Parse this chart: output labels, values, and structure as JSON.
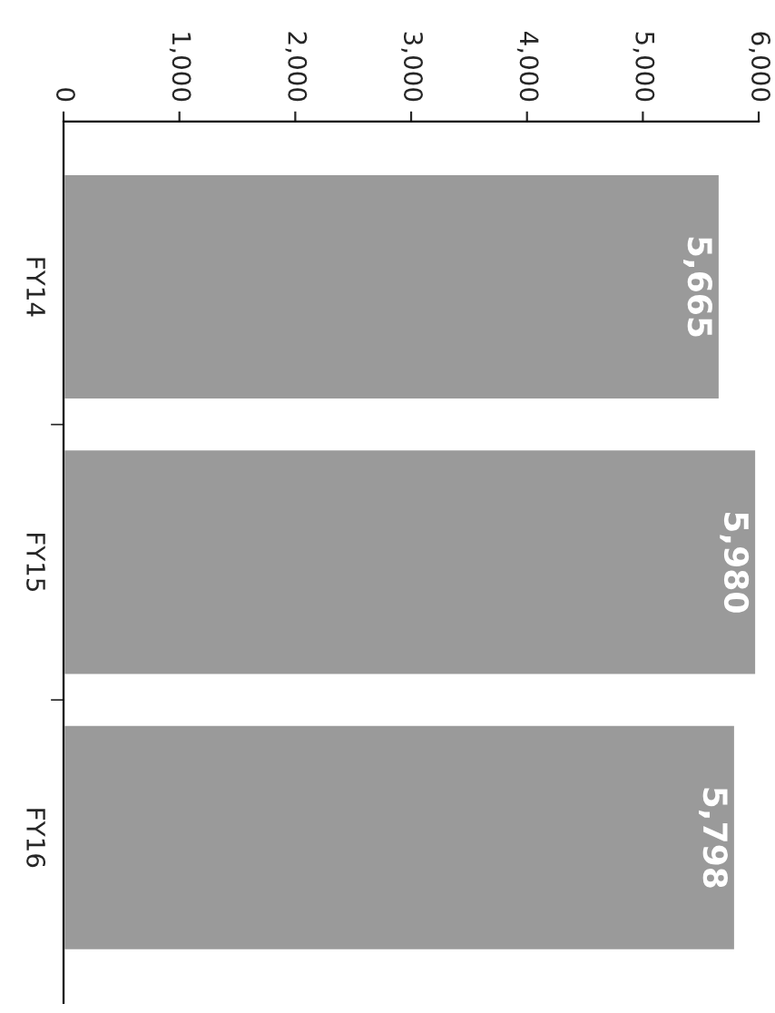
{
  "chart_data": {
    "type": "bar",
    "orientation": "horizontal",
    "categories": [
      "FY14",
      "FY15",
      "FY16"
    ],
    "values": [
      5665,
      5980,
      5798
    ],
    "color": "#9a9a9a",
    "xlim": [
      0,
      6000
    ],
    "xticks": [
      0,
      {
        "value": 1000,
        "label": "1,000"
      },
      {
        "value": 2000,
        "label": "2,000"
      },
      {
        "value": 3000,
        "label": "3,000"
      },
      {
        "value": 4000,
        "label": "4,000"
      },
      {
        "value": 5000,
        "label": "5,000"
      },
      {
        "value": 6000,
        "label": "6,000"
      }
    ],
    "value_labels": [
      "5,665",
      "5,980",
      "5,798"
    ],
    "grid": false,
    "legend": false
  }
}
